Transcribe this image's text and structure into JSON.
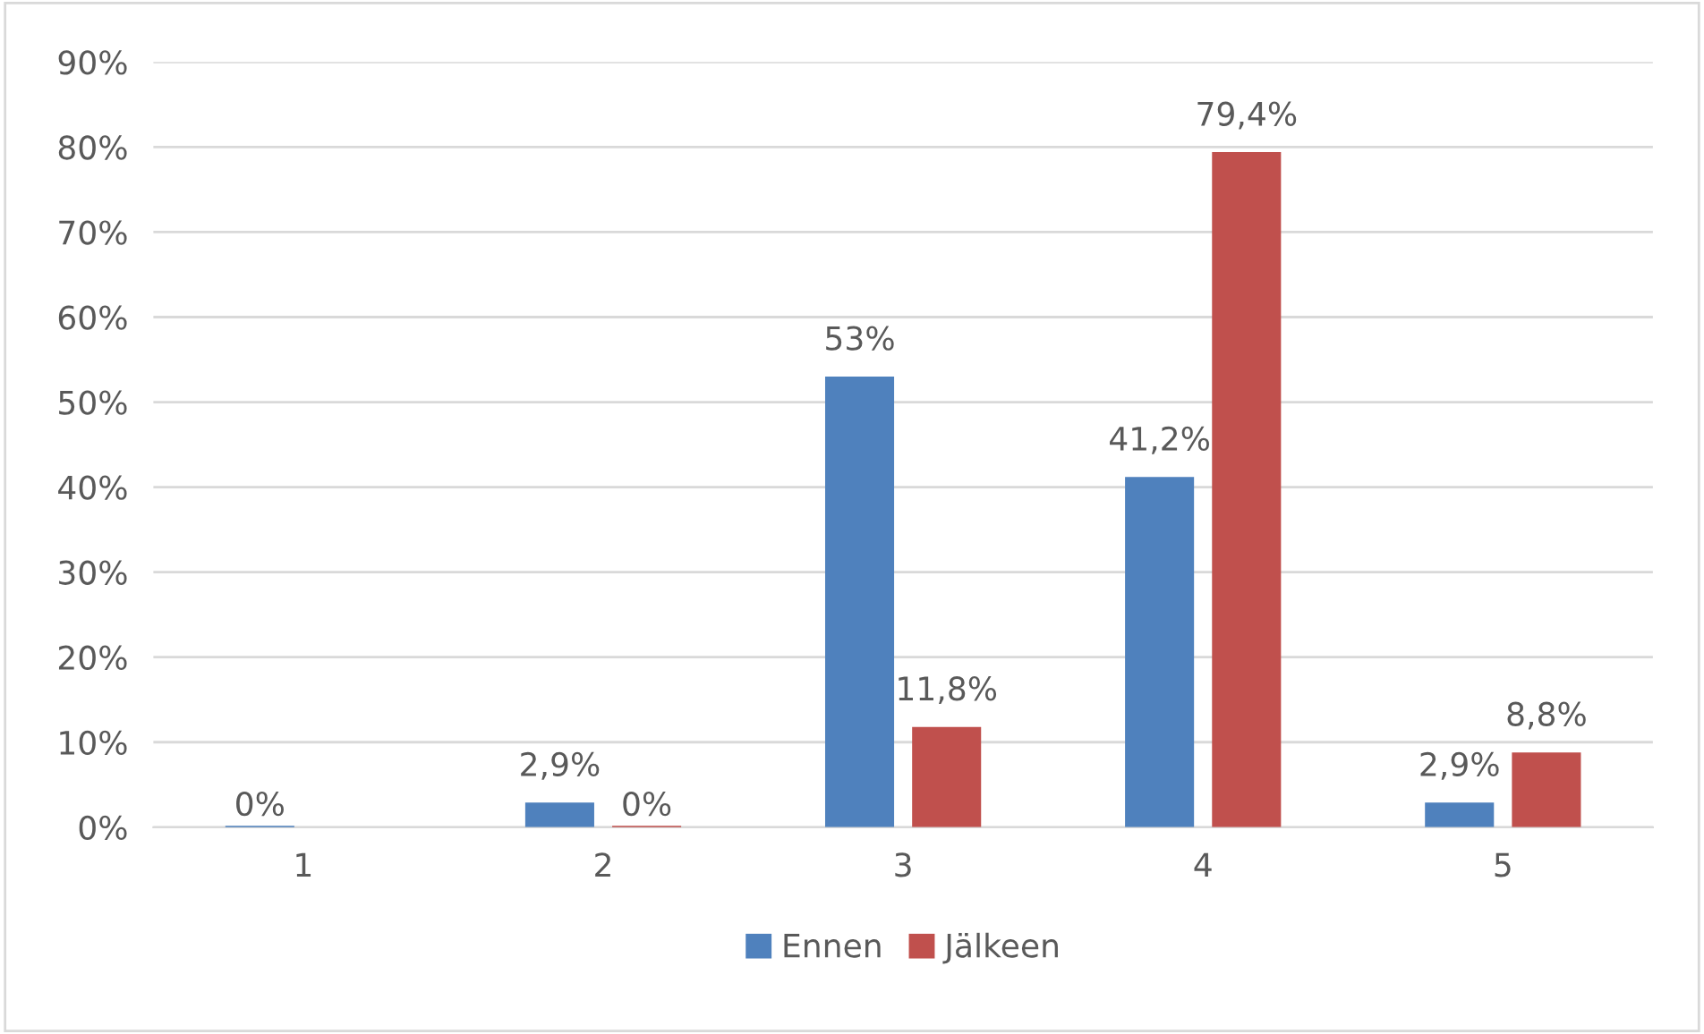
{
  "chart_data": {
    "type": "bar",
    "categories": [
      "1",
      "2",
      "3",
      "4",
      "5"
    ],
    "series": [
      {
        "name": "Ennen",
        "color": "#4f81bd",
        "values": [
          0,
          2.9,
          53,
          41.2,
          2.9
        ],
        "value_labels": [
          "0%",
          "2,9%",
          "53%",
          "41,2%",
          "2,9%"
        ]
      },
      {
        "name": "Jälkeen",
        "color": "#c0504d",
        "values": [
          null,
          0,
          11.8,
          79.4,
          8.8
        ],
        "value_labels": [
          null,
          "0%",
          "11,8%",
          "79,4%",
          "8,8%"
        ]
      }
    ],
    "ylim": [
      0,
      90
    ],
    "yticks": [
      {
        "value": 0,
        "label": "0%"
      },
      {
        "value": 10,
        "label": "10%"
      },
      {
        "value": 20,
        "label": "20%"
      },
      {
        "value": 30,
        "label": "30%"
      },
      {
        "value": 40,
        "label": "40%"
      },
      {
        "value": 50,
        "label": "50%"
      },
      {
        "value": 60,
        "label": "60%"
      },
      {
        "value": 70,
        "label": "70%"
      },
      {
        "value": 80,
        "label": "80%"
      },
      {
        "value": 90,
        "label": "90%"
      }
    ],
    "grid": "y",
    "legend": "bottom"
  }
}
